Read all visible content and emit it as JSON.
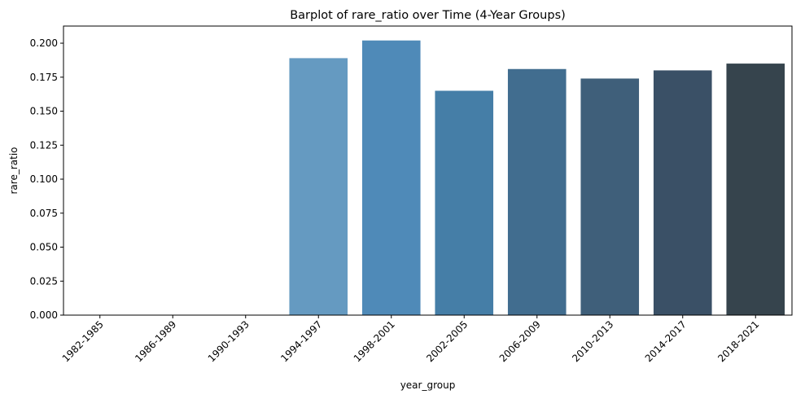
{
  "chart_data": {
    "type": "bar",
    "title": "Barplot of rare_ratio over Time (4-Year Groups)",
    "xlabel": "year_group",
    "ylabel": "rare_ratio",
    "categories": [
      "1982-1985",
      "1986-1989",
      "1990-1993",
      "1994-1997",
      "1998-2001",
      "2002-2005",
      "2006-2009",
      "2010-2013",
      "2014-2017",
      "2018-2021"
    ],
    "values": [
      0,
      0,
      0,
      0.189,
      0.202,
      0.165,
      0.181,
      0.174,
      0.18,
      0.185
    ],
    "colors": [
      "#6fa3cc",
      "#6aa0ca",
      "#659ac3",
      "#659ac1",
      "#4f8ab8",
      "#457ea7",
      "#416d8f",
      "#3f5f7a",
      "#3a5066",
      "#36444d"
    ],
    "ylim": [
      0,
      0.2126
    ],
    "yticks": [
      "0.000",
      "0.025",
      "0.050",
      "0.075",
      "0.100",
      "0.125",
      "0.150",
      "0.175",
      "0.200"
    ],
    "grid": false,
    "legend": false
  }
}
